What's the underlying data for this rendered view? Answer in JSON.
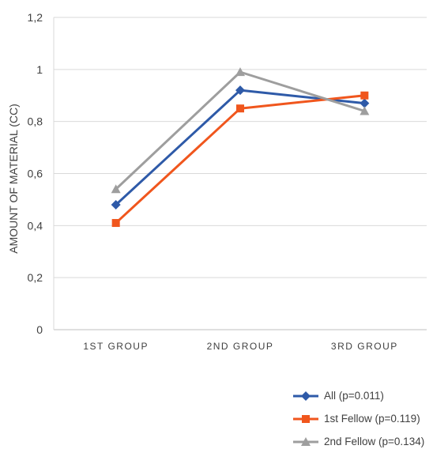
{
  "chart_data": {
    "type": "line",
    "categories": [
      "1ST GROUP",
      "2ND GROUP",
      "3RD GROUP"
    ],
    "ylabel": "AMOUNT OF MATERIAL (CC)",
    "xlabel": "",
    "ylim": [
      0,
      1.2
    ],
    "yticks": [
      "0",
      "0,2",
      "0,4",
      "0,6",
      "0,8",
      "1",
      "1,2"
    ],
    "grid": "horizontal",
    "legend_position": "bottom-right",
    "series": [
      {
        "name": "All (p=0.011)",
        "values": [
          0.48,
          0.92,
          0.87
        ],
        "color": "#2e5aa8",
        "marker": "diamond"
      },
      {
        "name": "1st Fellow (p=0.119)",
        "values": [
          0.41,
          0.85,
          0.9
        ],
        "color": "#f0561d",
        "marker": "square"
      },
      {
        "name": "2nd Fellow (p=0.134)",
        "values": [
          0.54,
          0.99,
          0.84
        ],
        "color": "#9e9e9e",
        "marker": "triangle"
      }
    ]
  }
}
